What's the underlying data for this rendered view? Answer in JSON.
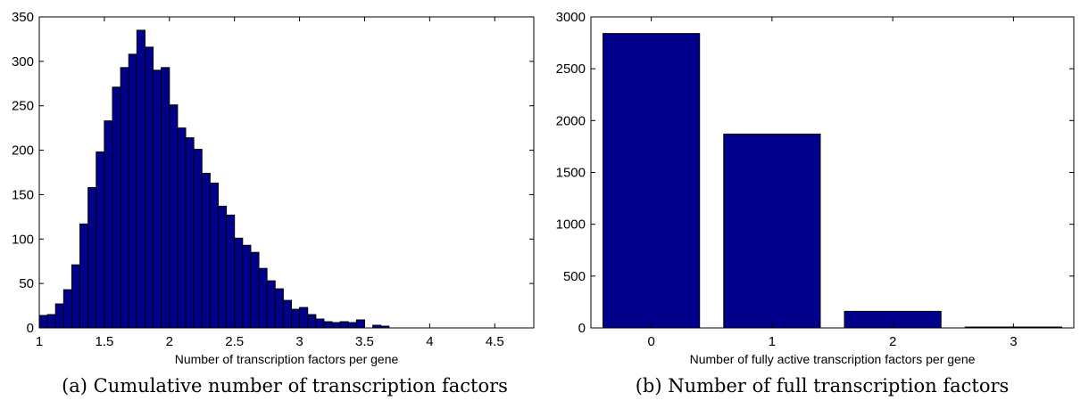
{
  "chart_data": [
    {
      "type": "bar",
      "subtype": "histogram",
      "xlabel": "Number of transcription factors per gene",
      "ylabel": "",
      "xlim": [
        1,
        4.8
      ],
      "ylim": [
        0,
        350
      ],
      "xticks": [
        "1",
        "1.5",
        "2",
        "2.5",
        "3",
        "3.5",
        "4",
        "4.5"
      ],
      "yticks": [
        "0",
        "50",
        "100",
        "150",
        "200",
        "250",
        "300",
        "350"
      ],
      "bin_start": 1.0,
      "bin_width": 0.0625,
      "values": [
        14,
        15,
        27,
        43,
        71,
        117,
        158,
        198,
        233,
        271,
        293,
        308,
        335,
        316,
        290,
        293,
        251,
        225,
        214,
        201,
        174,
        163,
        137,
        127,
        101,
        93,
        85,
        67,
        53,
        44,
        31,
        21,
        23,
        15,
        10,
        7,
        6,
        7,
        6,
        9,
        0,
        3,
        2
      ],
      "bar_color": "#00008B",
      "caption": "(a) Cumulative number of transcription factors"
    },
    {
      "type": "bar",
      "xlabel": "Number of fully active transcription factors per gene",
      "ylabel": "",
      "categories": [
        "0",
        "1",
        "2",
        "3"
      ],
      "values": [
        2840,
        1870,
        160,
        6
      ],
      "xlim": [
        -0.5,
        3.5
      ],
      "ylim": [
        0,
        3000
      ],
      "yticks": [
        "0",
        "500",
        "1000",
        "1500",
        "2000",
        "2500",
        "3000"
      ],
      "bar_color": "#00008B",
      "caption": "(b) Number of full transcription factors"
    }
  ]
}
